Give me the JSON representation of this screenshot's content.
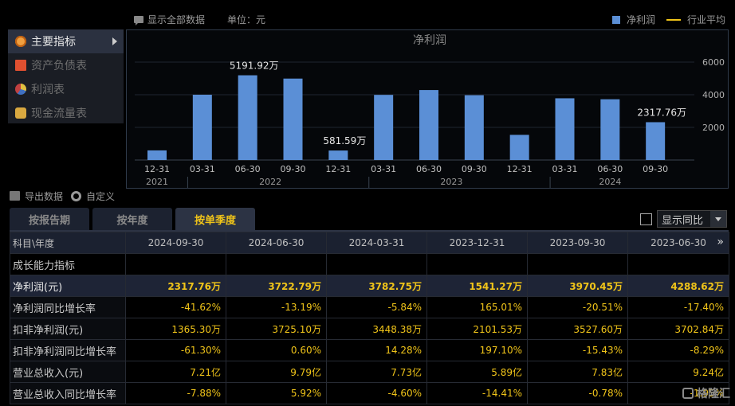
{
  "toolbar": {
    "show_all": "显示全部数据",
    "unit": "单位：元",
    "legend_series": "净利润",
    "legend_avg": "行业平均"
  },
  "sidebar": {
    "items": [
      {
        "label": "主要指标",
        "icon": "star-icon",
        "active": true
      },
      {
        "label": "资产负债表",
        "icon": "document-icon",
        "active": false
      },
      {
        "label": "利润表",
        "icon": "pie-icon",
        "active": false
      },
      {
        "label": "现金流量表",
        "icon": "coins-icon",
        "active": false
      }
    ]
  },
  "chart_data": {
    "type": "bar",
    "title": "净利润",
    "categories": [
      "12-31",
      "03-31",
      "06-30",
      "09-30",
      "12-31",
      "03-31",
      "06-30",
      "09-30",
      "12-31",
      "03-31",
      "06-30",
      "09-30"
    ],
    "years": [
      {
        "label": "2021",
        "from": 0,
        "to": 0
      },
      {
        "label": "2022",
        "from": 1,
        "to": 4
      },
      {
        "label": "2023",
        "from": 5,
        "to": 8
      },
      {
        "label": "2024",
        "from": 9,
        "to": 11
      }
    ],
    "series": [
      {
        "values": [
          590,
          4000,
          5191.92,
          4990,
          581.59,
          3990,
          4288.62,
          3970.45,
          1541.27,
          3782.75,
          3722.79,
          2317.76
        ]
      }
    ],
    "data_labels": [
      {
        "index": 2,
        "text": "5191.92万"
      },
      {
        "index": 4,
        "text": "581.59万"
      },
      {
        "index": 11,
        "text": "2317.76万"
      }
    ],
    "yticks": [
      2000,
      4000,
      6000
    ],
    "ylim": [
      0,
      6000
    ],
    "color": "#5b8fd6",
    "grid": true
  },
  "tools": {
    "export": "导出数据",
    "custom": "自定义"
  },
  "tabs": [
    {
      "label": "按报告期",
      "active": false
    },
    {
      "label": "按年度",
      "active": false
    },
    {
      "label": "按单季度",
      "active": true
    }
  ],
  "yoy": {
    "label": "显示同比"
  },
  "table": {
    "header": [
      "科目\\年度",
      "2024-09-30",
      "2024-06-30",
      "2024-03-31",
      "2023-12-31",
      "2023-09-30",
      "2023-06-30"
    ],
    "rows": [
      {
        "label": "成长能力指标",
        "values": [
          "",
          "",
          "",
          "",
          "",
          ""
        ],
        "type": "section"
      },
      {
        "label": "净利润(元)",
        "values": [
          "2317.76万",
          "3722.79万",
          "3782.75万",
          "1541.27万",
          "3970.45万",
          "4288.62万"
        ],
        "type": "highlight"
      },
      {
        "label": "净利润同比增长率",
        "values": [
          "-41.62%",
          "-13.19%",
          "-5.84%",
          "165.01%",
          "-20.51%",
          "-17.40%"
        ],
        "type": "normal"
      },
      {
        "label": "扣非净利润(元)",
        "values": [
          "1365.30万",
          "3725.10万",
          "3448.38万",
          "2101.53万",
          "3527.60万",
          "3702.84万"
        ],
        "type": "normal"
      },
      {
        "label": "扣非净利润同比增长率",
        "values": [
          "-61.30%",
          "0.60%",
          "14.28%",
          "197.10%",
          "-15.43%",
          "-8.29%"
        ],
        "type": "normal"
      },
      {
        "label": "营业总收入(元)",
        "values": [
          "7.21亿",
          "9.79亿",
          "7.73亿",
          "5.89亿",
          "7.83亿",
          "9.24亿"
        ],
        "type": "normal"
      },
      {
        "label": "营业总收入同比增长率",
        "values": [
          "-7.88%",
          "5.92%",
          "-4.60%",
          "-14.41%",
          "-0.78%",
          "-1.95%"
        ],
        "type": "normal"
      }
    ]
  },
  "watermark": "格隆汇"
}
